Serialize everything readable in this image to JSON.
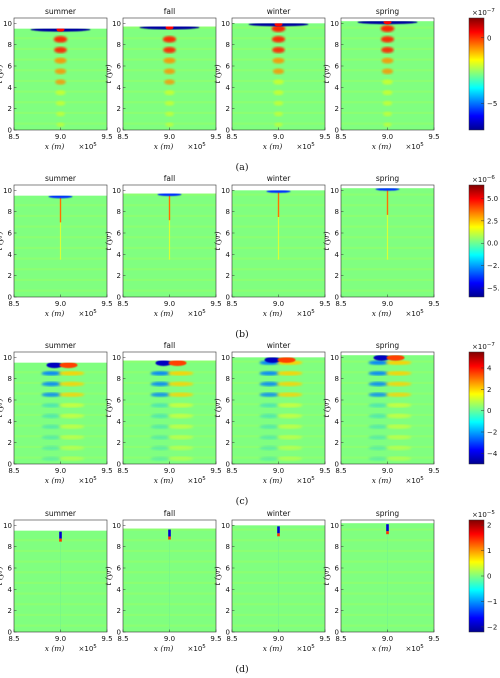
{
  "figure": {
    "panel_labels": [
      "(a)",
      "(b)",
      "(c)",
      "(d)"
    ]
  },
  "colormap": [
    "#00008f",
    "#0000ff",
    "#0080ff",
    "#00ffff",
    "#80ff80",
    "#ffff00",
    "#ff8000",
    "#ff0000",
    "#800000"
  ],
  "chart_data": [
    {
      "type": "heatmap",
      "label": "(a)",
      "subplots": [
        "summer",
        "fall",
        "winter",
        "spring"
      ],
      "xlabel": "x (m)",
      "x_multiplier": "×10^5",
      "xlim": [
        8.5,
        9.5
      ],
      "xticks": [
        "8.5",
        "9.0",
        "9.5"
      ],
      "ylabel": "t (yr)",
      "ylim": [
        0,
        10.5
      ],
      "yticks": [
        "0",
        "2",
        "4",
        "6",
        "8",
        "10"
      ],
      "t_end": [
        9.5,
        9.7,
        10.0,
        10.2
      ],
      "colorbar": {
        "min": -7,
        "max": 1.5,
        "ticks": [
          "0",
          "-5"
        ],
        "multiplier": "×10^-7"
      },
      "pattern": "beads"
    },
    {
      "type": "heatmap",
      "label": "(b)",
      "subplots": [
        "summer",
        "fall",
        "winter",
        "spring"
      ],
      "xlabel": "x (m)",
      "x_multiplier": "×10^5",
      "xlim": [
        8.5,
        9.5
      ],
      "xticks": [
        "8.5",
        "9.0",
        "9.5"
      ],
      "ylabel": "t (yr)",
      "ylim": [
        0,
        10.5
      ],
      "yticks": [
        "0",
        "2",
        "4",
        "6",
        "8",
        "10"
      ],
      "t_end": [
        9.5,
        9.7,
        10.0,
        10.2
      ],
      "colorbar": {
        "min": -6,
        "max": 6.5,
        "ticks": [
          "5.0",
          "2.5",
          "0.0",
          "-2.5",
          "-5.0"
        ],
        "multiplier": "×10^-6"
      },
      "pattern": "line"
    },
    {
      "type": "heatmap",
      "label": "(c)",
      "subplots": [
        "summer",
        "fall",
        "winter",
        "spring"
      ],
      "xlabel": "x (m)",
      "x_multiplier": "×10^5",
      "xlim": [
        8.5,
        9.5
      ],
      "xticks": [
        "8.5",
        "9.0",
        "9.5"
      ],
      "ylabel": "t (yr)",
      "ylim": [
        0,
        10.5
      ],
      "yticks": [
        "0",
        "2",
        "4",
        "6",
        "8",
        "10"
      ],
      "t_end": [
        9.5,
        9.7,
        10.0,
        10.2
      ],
      "colorbar": {
        "min": -5,
        "max": 5.5,
        "ticks": [
          "4",
          "2",
          "0",
          "-2",
          "-4"
        ],
        "multiplier": "×10^-7"
      },
      "pattern": "dipole"
    },
    {
      "type": "heatmap",
      "label": "(d)",
      "subplots": [
        "summer",
        "fall",
        "winter",
        "spring"
      ],
      "xlabel": "x (m)",
      "x_multiplier": "×10^5",
      "xlim": [
        8.5,
        9.5
      ],
      "xticks": [
        "8.5",
        "9.0",
        "9.5"
      ],
      "ylabel": "t (yr)",
      "ylim": [
        0,
        10.5
      ],
      "yticks": [
        "0",
        "2",
        "4",
        "6",
        "8",
        "10"
      ],
      "t_end": [
        9.5,
        9.7,
        10.0,
        10.2
      ],
      "colorbar": {
        "min": -2.2,
        "max": 2.2,
        "ticks": [
          "2",
          "1",
          "0",
          "-1",
          "-2"
        ],
        "multiplier": "×10^-5"
      },
      "pattern": "spike"
    }
  ]
}
